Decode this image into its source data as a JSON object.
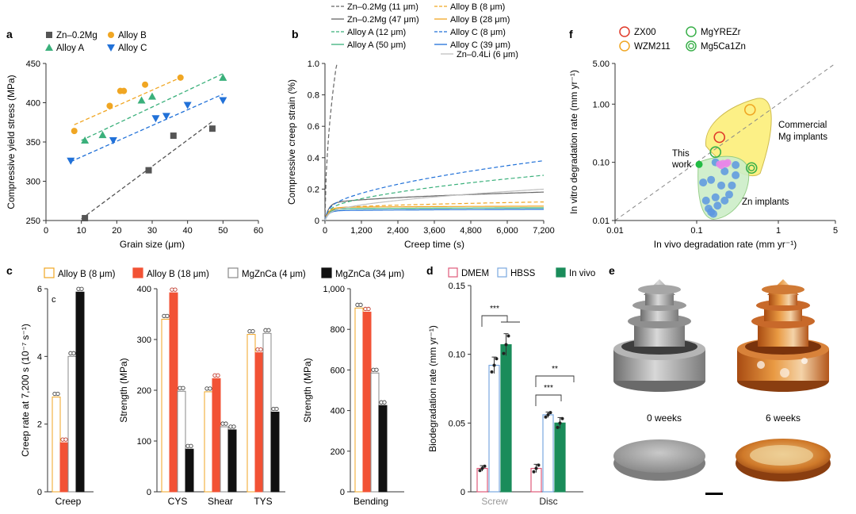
{
  "chart_data": [
    {
      "panel": "a",
      "type": "scatter",
      "xlabel": "Grain size (μm)",
      "ylabel": "Compressive yield stress (MPa)",
      "xlim": [
        0,
        60
      ],
      "ylim": [
        250,
        450
      ],
      "xticks": [
        0,
        10,
        20,
        30,
        40,
        50,
        60
      ],
      "yticks": [
        250,
        300,
        350,
        400,
        450
      ],
      "series": [
        {
          "name": "Zn–0.2Mg",
          "color": "#555555",
          "marker": "square",
          "x": [
            11,
            29,
            36,
            47
          ],
          "y": [
            253,
            314,
            358,
            367
          ],
          "fit": [
            [
              10,
              252
            ],
            [
              47,
              376
            ]
          ]
        },
        {
          "name": "Alloy B",
          "color": "#f0a623",
          "marker": "circle",
          "x": [
            8,
            18,
            21,
            22,
            28,
            38
          ],
          "y": [
            364,
            396,
            415,
            415,
            423,
            432
          ],
          "fit": [
            [
              8,
              372
            ],
            [
              38,
              432
            ]
          ]
        },
        {
          "name": "Alloy A",
          "color": "#3ab07b",
          "marker": "triangle-up",
          "x": [
            11,
            16,
            27,
            30,
            50
          ],
          "y": [
            352,
            359,
            403,
            408,
            432
          ],
          "fit": [
            [
              10,
              352
            ],
            [
              50,
              437
            ]
          ]
        },
        {
          "name": "Alloy C",
          "color": "#2171d8",
          "marker": "triangle-down",
          "x": [
            7,
            19,
            31,
            34,
            40,
            50
          ],
          "y": [
            326,
            352,
            380,
            383,
            397,
            403
          ],
          "fit": [
            [
              7,
              325
            ],
            [
              50,
              411
            ]
          ]
        }
      ]
    },
    {
      "panel": "b",
      "type": "line",
      "xlabel": "Creep time (s)",
      "ylabel": "Compressive creep strain (%)",
      "xlim": [
        0,
        7200
      ],
      "ylim": [
        0,
        1.0
      ],
      "xticks": [
        "0",
        "1,200",
        "2,400",
        "3,600",
        "4,800",
        "6,000",
        "7,200"
      ],
      "yticks": [
        "0",
        "0.2",
        "0.4",
        "0.6",
        "0.8",
        "1.0"
      ],
      "series": [
        {
          "name": "Zn–0.2Mg (11 μm)",
          "color": "#666666",
          "dash": true,
          "a": 0.35,
          "b": 0.08,
          "p": 0.55
        },
        {
          "name": "Zn–0.2Mg (47 μm)",
          "color": "#666666",
          "dash": false,
          "a": 0.008,
          "b": 0.1,
          "p": 0.52
        },
        {
          "name": "Alloy A (12 μm)",
          "color": "#3ab07b",
          "dash": true,
          "a": 0.018,
          "b": 0.05,
          "p": 0.55
        },
        {
          "name": "Alloy A (50 μm)",
          "color": "#3ab07b",
          "dash": false,
          "a": 0.0045,
          "b": 0.07,
          "p": 0.36
        },
        {
          "name": "Alloy B (8 μm)",
          "color": "#f0a623",
          "dash": true,
          "a": 0.0057,
          "b": 0.07,
          "p": 0.5
        },
        {
          "name": "Alloy B (28 μm)",
          "color": "#f0a623",
          "dash": false,
          "a": 0.0033,
          "b": 0.08,
          "p": 0.4
        },
        {
          "name": "Alloy C (8 μm)",
          "color": "#2171d8",
          "dash": true,
          "a": 0.025,
          "b": 0.05,
          "p": 0.55
        },
        {
          "name": "Alloy C (39 μm)",
          "color": "#2171d8",
          "dash": false,
          "a": 0.0025,
          "b": 0.06,
          "p": 0.43
        },
        {
          "name": "Zn–0.4Li (6 μm)",
          "color": "#bfbfbf",
          "dash": false,
          "a": 0.02,
          "b": 0.03,
          "p": 0.5
        }
      ]
    },
    {
      "panel": "c",
      "type": "bar",
      "legend": [
        {
          "name": "Alloy B (8 μm)",
          "fill": "#ffffff",
          "stroke": "#f0a623"
        },
        {
          "name": "Alloy B (18 μm)",
          "fill": "#f25235",
          "stroke": "#f25235"
        },
        {
          "name": "MgZnCa (4 μm)",
          "fill": "#ffffff",
          "stroke": "#888888"
        },
        {
          "name": "MgZnCa (34 μm)",
          "fill": "#111111",
          "stroke": "#111111"
        }
      ],
      "subpanels": [
        {
          "id": "c1",
          "ylabel": "Creep rate at 7,200 s (10⁻⁷ s⁻¹)",
          "inner_label": "c",
          "ylim": [
            0,
            6
          ],
          "yticks": [
            0,
            2,
            4,
            6
          ],
          "categories": [
            "Creep"
          ],
          "values": [
            [
              2.8,
              1.45,
              4.0,
              5.9
            ]
          ]
        },
        {
          "id": "c2",
          "ylabel": "Strength (MPa)",
          "ylim": [
            0,
            400
          ],
          "yticks": [
            0,
            100,
            200,
            300,
            400
          ],
          "categories": [
            "CYS",
            "Shear",
            "TYS"
          ],
          "values": [
            [
              340,
              392,
              198,
              84
            ],
            [
              197,
              223,
              128,
              122
            ],
            [
              310,
              274,
              312,
              157
            ]
          ]
        },
        {
          "id": "c3",
          "ylabel": "Strength (MPa)",
          "ylim": [
            0,
            1000
          ],
          "yticks": [
            0,
            200,
            400,
            600,
            800,
            "1,000"
          ],
          "categories": [
            "Bending"
          ],
          "values": [
            [
              905,
              885,
              585,
              425
            ]
          ]
        }
      ]
    },
    {
      "panel": "d",
      "type": "bar",
      "ylabel": "Biodegradation rate (mm yr⁻¹)",
      "ylim": [
        0,
        0.15
      ],
      "yticks": [
        "0",
        "0.05",
        "0.10",
        "0.15"
      ],
      "categories": [
        "Screw",
        "Disc"
      ],
      "series": [
        {
          "name": "DMEM",
          "fill": "#ffffff",
          "stroke": "#e05a7a",
          "values": [
            0.017,
            0.017
          ],
          "err": [
            0.002,
            0.003
          ]
        },
        {
          "name": "HBSS",
          "fill": "#ffffff",
          "stroke": "#7aa8e0",
          "values": [
            0.092,
            0.056
          ],
          "err": [
            0.006,
            0.002
          ]
        },
        {
          "name": "In vivo",
          "fill": "#1a8c5a",
          "stroke": "#1a8c5a",
          "values": [
            0.107,
            0.05
          ],
          "err": [
            0.008,
            0.004
          ]
        }
      ],
      "significance": [
        {
          "group": "Screw",
          "label": "***"
        },
        {
          "group": "Disc",
          "label": "***"
        },
        {
          "group": "Disc",
          "label": "**"
        }
      ]
    },
    {
      "panel": "f",
      "type": "scatter",
      "xlabel": "In vivo degradation rate (mm yr⁻¹)",
      "ylabel": "In vitro degradation rate (mm yr⁻¹)",
      "scale": "log",
      "xlim": [
        0.01,
        5
      ],
      "ylim": [
        0.01,
        5
      ],
      "xticks": [
        "0.01",
        "0.1",
        "1",
        "5"
      ],
      "yticks": [
        "0.01",
        "0.10",
        "1.00",
        "5.00"
      ],
      "legend": [
        {
          "name": "ZX00",
          "color": "#e03a2a",
          "ring": "single"
        },
        {
          "name": "MgYREZr",
          "color": "#3ab04a",
          "ring": "single"
        },
        {
          "name": "WZM211",
          "color": "#f0a623",
          "ring": "single"
        },
        {
          "name": "Mg5Ca1Zn",
          "color": "#3ab04a",
          "ring": "double"
        }
      ],
      "annotations": [
        "Commercial",
        "Mg implants",
        "This",
        "work",
        "Zn implants"
      ],
      "commercial_points": [
        {
          "x": 0.19,
          "y": 0.27,
          "color": "#e03a2a",
          "ring": "single"
        },
        {
          "x": 0.45,
          "y": 0.8,
          "color": "#f0a623",
          "ring": "single"
        },
        {
          "x": 0.17,
          "y": 0.15,
          "color": "#3ab04a",
          "ring": "single"
        },
        {
          "x": 0.47,
          "y": 0.08,
          "color": "#3ab04a",
          "ring": "double"
        }
      ],
      "zn_points": [
        [
          0.14,
          0.016
        ],
        [
          0.16,
          0.013
        ],
        [
          0.15,
          0.014
        ],
        [
          0.18,
          0.018
        ],
        [
          0.22,
          0.022
        ],
        [
          0.13,
          0.022
        ],
        [
          0.17,
          0.025
        ],
        [
          0.25,
          0.028
        ],
        [
          0.2,
          0.04
        ],
        [
          0.27,
          0.04
        ],
        [
          0.15,
          0.05
        ],
        [
          0.3,
          0.06
        ],
        [
          0.22,
          0.07
        ],
        [
          0.3,
          0.09
        ],
        [
          0.17,
          0.1
        ],
        [
          0.12,
          0.045
        ]
      ],
      "magenta_points": [
        [
          0.19,
          0.093
        ],
        [
          0.21,
          0.096
        ],
        [
          0.23,
          0.094
        ],
        [
          0.2,
          0.088
        ],
        [
          0.24,
          0.099
        ]
      ],
      "this_work": {
        "x": 0.107,
        "y": 0.092,
        "color": "#22bb44"
      }
    }
  ],
  "panel_e": {
    "label": "e",
    "captions": [
      "0 weeks",
      "6 weeks"
    ]
  },
  "panel_labels": [
    "a",
    "b",
    "c",
    "d",
    "e",
    "f"
  ]
}
